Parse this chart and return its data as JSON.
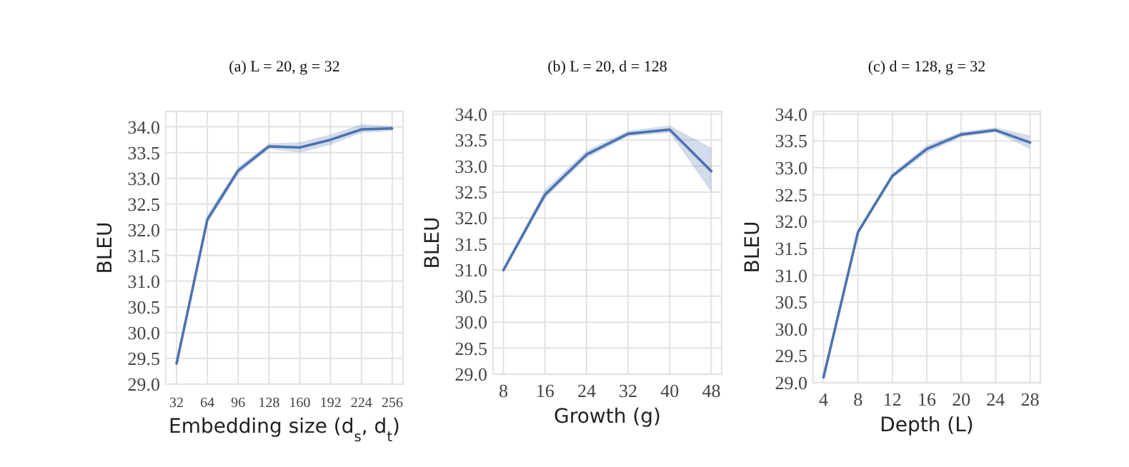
{
  "chart_data": [
    {
      "type": "line",
      "title": "(a) L = 20,  g = 32",
      "xlabel": "Embedding size (d$_{s}$, d$_{t}$)",
      "ylabel": "BLEU",
      "x": [
        32,
        64,
        96,
        128,
        160,
        192,
        224,
        256
      ],
      "xlim": [
        20.8,
        267.2
      ],
      "xticks": [
        32,
        64,
        96,
        128,
        160,
        192,
        224,
        256
      ],
      "ylim": [
        29,
        34.3
      ],
      "yticks": [
        {
          "value": 29,
          "label": "29.0"
        },
        {
          "value": 29.5,
          "label": "29.5"
        },
        {
          "value": 30,
          "label": "30.0"
        },
        {
          "value": 30.5,
          "label": "30.5"
        },
        {
          "value": 31,
          "label": "31.0"
        },
        {
          "value": 31.5,
          "label": "31.5"
        },
        {
          "value": 32,
          "label": "32.0"
        },
        {
          "value": 32.5,
          "label": "32.5"
        },
        {
          "value": 33,
          "label": "33.0"
        },
        {
          "value": 33.5,
          "label": "33.5"
        },
        {
          "value": 34,
          "label": "34.0"
        }
      ],
      "grid": true,
      "series": [
        {
          "color": "#4c72b0",
          "values": [
            29.4,
            32.2,
            33.15,
            33.62,
            33.6,
            33.75,
            33.95,
            33.97
          ],
          "lower": [
            29.35,
            32.12,
            33.08,
            33.57,
            33.5,
            33.65,
            33.88,
            33.92
          ],
          "upper": [
            29.45,
            32.3,
            33.22,
            33.68,
            33.7,
            33.85,
            34.05,
            34.02
          ]
        }
      ]
    },
    {
      "type": "line",
      "title": "(b) L = 20,  d = 128",
      "xlabel": "Growth (g)",
      "ylabel": "BLEU",
      "x": [
        8,
        16,
        24,
        32,
        40,
        48
      ],
      "xlim": [
        6,
        50
      ],
      "xticks": [
        8,
        16,
        24,
        32,
        40,
        48
      ],
      "ylim": [
        29,
        34.05
      ],
      "yticks": [
        {
          "value": 29,
          "label": "29.0"
        },
        {
          "value": 29.5,
          "label": "29.5"
        },
        {
          "value": 30,
          "label": "30.0"
        },
        {
          "value": 30.5,
          "label": "30.5"
        },
        {
          "value": 31,
          "label": "31.0"
        },
        {
          "value": 31.5,
          "label": "31.5"
        },
        {
          "value": 32,
          "label": "32.0"
        },
        {
          "value": 32.5,
          "label": "32.5"
        },
        {
          "value": 33,
          "label": "33.0"
        },
        {
          "value": 33.5,
          "label": "33.5"
        },
        {
          "value": 34,
          "label": "34.0"
        }
      ],
      "grid": true,
      "series": [
        {
          "color": "#4c72b0",
          "values": [
            31.0,
            32.45,
            33.22,
            33.62,
            33.7,
            32.9
          ],
          "lower": [
            30.97,
            32.38,
            33.15,
            33.57,
            33.64,
            32.5
          ],
          "upper": [
            31.05,
            32.55,
            33.3,
            33.68,
            33.78,
            33.35
          ]
        }
      ]
    },
    {
      "type": "line",
      "title": "(c) d = 128,  g = 32",
      "xlabel": "Depth (L)",
      "ylabel": "BLEU",
      "x": [
        4,
        8,
        12,
        16,
        20,
        24,
        28
      ],
      "xlim": [
        2.8,
        29.2
      ],
      "xticks": [
        4,
        8,
        12,
        16,
        20,
        24,
        28
      ],
      "ylim": [
        29,
        34.05
      ],
      "yticks": [
        {
          "value": 29,
          "label": "29.0"
        },
        {
          "value": 29.5,
          "label": "29.5"
        },
        {
          "value": 30,
          "label": "30.0"
        },
        {
          "value": 30.5,
          "label": "30.5"
        },
        {
          "value": 31,
          "label": "31.0"
        },
        {
          "value": 31.5,
          "label": "31.5"
        },
        {
          "value": 32,
          "label": "32.0"
        },
        {
          "value": 32.5,
          "label": "32.5"
        },
        {
          "value": 33,
          "label": "33.0"
        },
        {
          "value": 33.5,
          "label": "33.5"
        },
        {
          "value": 34,
          "label": "34.0"
        }
      ],
      "grid": true,
      "series": [
        {
          "color": "#4c72b0",
          "values": [
            29.1,
            31.8,
            32.85,
            33.35,
            33.62,
            33.7,
            33.47
          ],
          "lower": [
            29.07,
            31.75,
            32.8,
            33.28,
            33.57,
            33.66,
            33.35
          ],
          "upper": [
            29.13,
            31.85,
            32.9,
            33.42,
            33.67,
            33.75,
            33.6
          ]
        }
      ]
    }
  ]
}
